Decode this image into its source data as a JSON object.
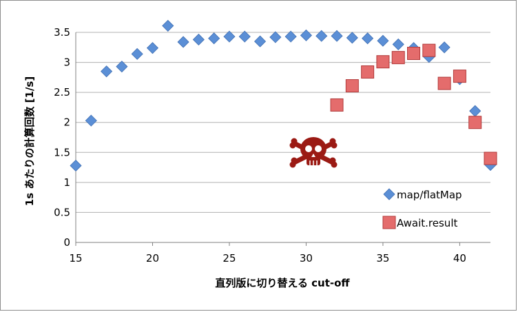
{
  "chart_data": {
    "type": "scatter",
    "title": "",
    "xlabel": "直列版に切り替える cut-off",
    "ylabel": "1s あたりの計算回数 [1/s]",
    "xlim": [
      15,
      42
    ],
    "ylim": [
      0,
      3.5
    ],
    "x_ticks": [
      "15",
      "20",
      "25",
      "30",
      "35",
      "40"
    ],
    "y_ticks": [
      "0",
      "0.5",
      "1",
      "1.5",
      "2",
      "2.5",
      "3",
      "3.5"
    ],
    "grid": "horizontal",
    "legend_position": "right",
    "series": [
      {
        "name": "map/flatMap",
        "marker": "diamond",
        "color": "#5b8fd6",
        "x": [
          15,
          16,
          17,
          18,
          19,
          20,
          21,
          22,
          23,
          24,
          25,
          26,
          27,
          28,
          29,
          30,
          31,
          32,
          33,
          34,
          35,
          36,
          37,
          38,
          39,
          40,
          41,
          42
        ],
        "y": [
          1.28,
          2.03,
          2.85,
          2.93,
          3.14,
          3.24,
          3.61,
          3.34,
          3.38,
          3.4,
          3.43,
          3.43,
          3.35,
          3.42,
          3.43,
          3.45,
          3.44,
          3.44,
          3.41,
          3.4,
          3.36,
          3.3,
          3.24,
          3.09,
          3.25,
          2.72,
          2.19,
          1.29
        ]
      },
      {
        "name": "Await.result",
        "marker": "square",
        "color": "#e46c6c",
        "x": [
          32,
          33,
          34,
          35,
          36,
          37,
          38,
          39,
          40,
          41,
          42
        ],
        "y": [
          2.29,
          2.61,
          2.84,
          3.01,
          3.08,
          3.15,
          3.2,
          2.65,
          2.77,
          2.0,
          1.4
        ]
      }
    ]
  },
  "icons": {
    "annotation": "skull-crossbones-icon",
    "annotation_color": "#9b1a14"
  }
}
